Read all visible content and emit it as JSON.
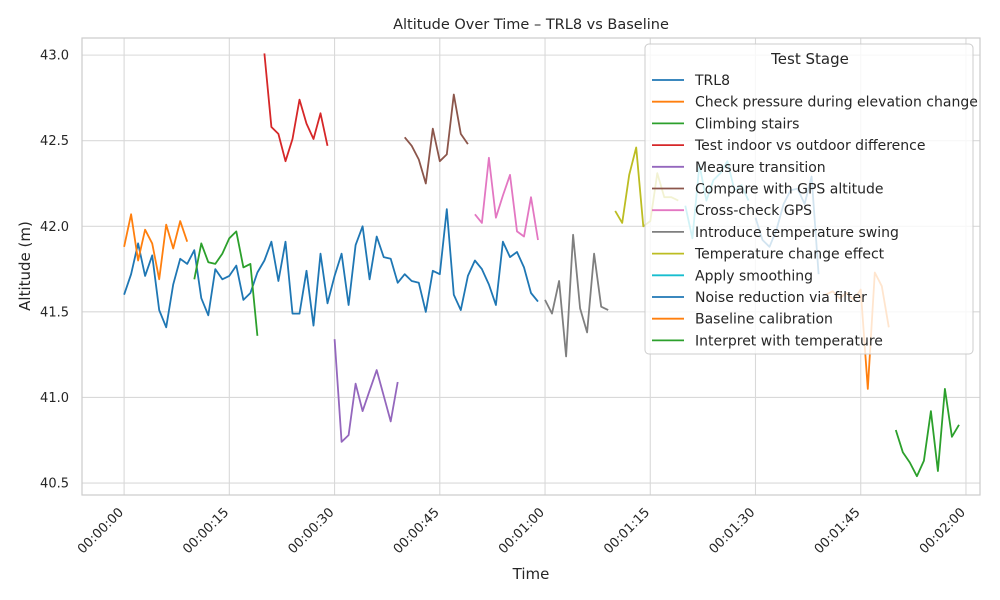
{
  "chart_data": {
    "type": "line",
    "title": "Altitude Over Time – TRL8 vs Baseline",
    "xlabel": "Time",
    "ylabel": "Altitude (m)",
    "x_unit": "seconds",
    "xlim": [
      -6,
      122
    ],
    "ylim": [
      40.43,
      43.1
    ],
    "xticks": [
      0,
      15,
      30,
      45,
      60,
      75,
      90,
      105,
      120
    ],
    "xtick_labels": [
      "00:00:00",
      "00:00:15",
      "00:00:30",
      "00:00:45",
      "00:01:00",
      "00:01:15",
      "00:01:30",
      "00:01:45",
      "00:02:00"
    ],
    "yticks": [
      40.5,
      41.0,
      41.5,
      42.0,
      42.5,
      43.0
    ],
    "ytick_labels": [
      "40.5",
      "41.0",
      "41.5",
      "42.0",
      "42.5",
      "43.0"
    ],
    "grid": true,
    "legend": {
      "title": "Test Stage",
      "placement": "top-right"
    },
    "series": [
      {
        "name": "TRL8",
        "color": "#1f77b4",
        "x": [
          0,
          1,
          2,
          3,
          4,
          5,
          6,
          7,
          8,
          9,
          10,
          11,
          12,
          13,
          14,
          15,
          16,
          17,
          18,
          19,
          20,
          21,
          22,
          23,
          24,
          25,
          26,
          27,
          28,
          29,
          30,
          31,
          32,
          33,
          34,
          35,
          36,
          37,
          38,
          39,
          40,
          41,
          42,
          43,
          44,
          45,
          46,
          47,
          48,
          49,
          50,
          51,
          52,
          53,
          54,
          55,
          56,
          57,
          58,
          59
        ],
        "y": [
          41.6,
          41.72,
          41.9,
          41.71,
          41.83,
          41.51,
          41.41,
          41.66,
          41.81,
          41.78,
          41.86,
          41.58,
          41.48,
          41.75,
          41.69,
          41.71,
          41.77,
          41.57,
          41.61,
          41.73,
          41.8,
          41.91,
          41.68,
          41.91,
          41.49,
          41.49,
          41.74,
          41.42,
          41.84,
          41.55,
          41.71,
          41.84,
          41.54,
          41.89,
          42.0,
          41.69,
          41.94,
          41.82,
          41.81,
          41.67,
          41.72,
          41.68,
          41.67,
          41.5,
          41.74,
          41.72,
          42.1,
          41.6,
          41.51,
          41.71,
          41.8,
          41.75,
          41.66,
          41.54,
          41.91,
          41.82,
          41.85,
          41.76,
          41.61,
          41.56
        ]
      },
      {
        "name": "Check pressure during elevation change",
        "color": "#ff7f0e",
        "x": [
          0,
          1,
          2,
          3,
          4,
          5,
          6,
          7,
          8,
          9
        ],
        "y": [
          41.88,
          42.07,
          41.8,
          41.98,
          41.9,
          41.69,
          42.01,
          41.87,
          42.03,
          41.91
        ]
      },
      {
        "name": "Climbing stairs",
        "color": "#2ca02c",
        "x": [
          10,
          11,
          12,
          13,
          14,
          15,
          16,
          17,
          18,
          19
        ],
        "y": [
          41.69,
          41.9,
          41.79,
          41.78,
          41.84,
          41.93,
          41.97,
          41.76,
          41.78,
          41.36
        ]
      },
      {
        "name": "Test indoor vs outdoor difference",
        "color": "#d62728",
        "x": [
          20,
          21,
          22,
          23,
          24,
          25,
          26,
          27,
          28,
          29
        ],
        "y": [
          43.01,
          42.58,
          42.54,
          42.38,
          42.51,
          42.74,
          42.6,
          42.51,
          42.66,
          42.47
        ]
      },
      {
        "name": "Measure transition",
        "color": "#9467bd",
        "x": [
          30,
          31,
          32,
          33,
          34,
          35,
          36,
          37,
          38,
          39
        ],
        "y": [
          41.34,
          40.74,
          40.78,
          41.08,
          40.92,
          41.04,
          41.16,
          41.01,
          40.86,
          41.09
        ]
      },
      {
        "name": "Compare with GPS altitude",
        "color": "#8c564b",
        "x": [
          40,
          41,
          42,
          43,
          44,
          45,
          46,
          47,
          48,
          49
        ],
        "y": [
          42.52,
          42.47,
          42.39,
          42.25,
          42.57,
          42.38,
          42.42,
          42.77,
          42.54,
          42.48
        ]
      },
      {
        "name": "Cross-check GPS",
        "color": "#e377c2",
        "x": [
          50,
          51,
          52,
          53,
          54,
          55,
          56,
          57,
          58,
          59
        ],
        "y": [
          42.07,
          42.02,
          42.4,
          42.05,
          42.18,
          42.3,
          41.97,
          41.94,
          42.17,
          41.92
        ]
      },
      {
        "name": "Introduce temperature swing",
        "color": "#7f7f7f",
        "x": [
          60,
          61,
          62,
          63,
          64,
          65,
          66,
          67,
          68,
          69
        ],
        "y": [
          41.57,
          41.49,
          41.68,
          41.24,
          41.95,
          41.52,
          41.38,
          41.84,
          41.53,
          41.51
        ]
      },
      {
        "name": "Temperature change effect",
        "color": "#bcbd22",
        "x": [
          70,
          71,
          72,
          73,
          74,
          75,
          76,
          77,
          78,
          79
        ],
        "y": [
          42.09,
          42.02,
          42.3,
          42.46,
          42.0,
          42.03,
          42.31,
          42.17,
          42.17,
          42.15
        ]
      },
      {
        "name": "Apply smoothing",
        "color": "#17becf",
        "x": [
          80,
          81,
          82,
          83,
          84,
          85,
          86,
          87,
          88,
          89
        ],
        "y": [
          42.12,
          41.93,
          42.36,
          42.15,
          42.27,
          42.31,
          42.38,
          42.21,
          42.24,
          42.15
        ]
      },
      {
        "name": "Noise reduction via filter",
        "color": "#1f77b4",
        "x": [
          90,
          91,
          92,
          93,
          94,
          95,
          96,
          97,
          98,
          99
        ],
        "y": [
          42.05,
          41.92,
          41.88,
          41.98,
          42.13,
          42.21,
          42.22,
          42.13,
          42.29,
          41.72
        ]
      },
      {
        "name": "Baseline calibration",
        "color": "#ff7f0e",
        "x": [
          100,
          101,
          102,
          103,
          104,
          105,
          106,
          107,
          108,
          109
        ],
        "y": [
          41.6,
          41.62,
          41.58,
          41.61,
          41.57,
          41.63,
          41.05,
          41.73,
          41.65,
          41.41
        ]
      },
      {
        "name": "Interpret with temperature",
        "color": "#2ca02c",
        "x": [
          110,
          111,
          112,
          113,
          114,
          115,
          116,
          117,
          118,
          119
        ],
        "y": [
          40.81,
          40.68,
          40.62,
          40.54,
          40.63,
          40.92,
          40.57,
          41.05,
          40.77,
          40.84
        ]
      }
    ]
  }
}
